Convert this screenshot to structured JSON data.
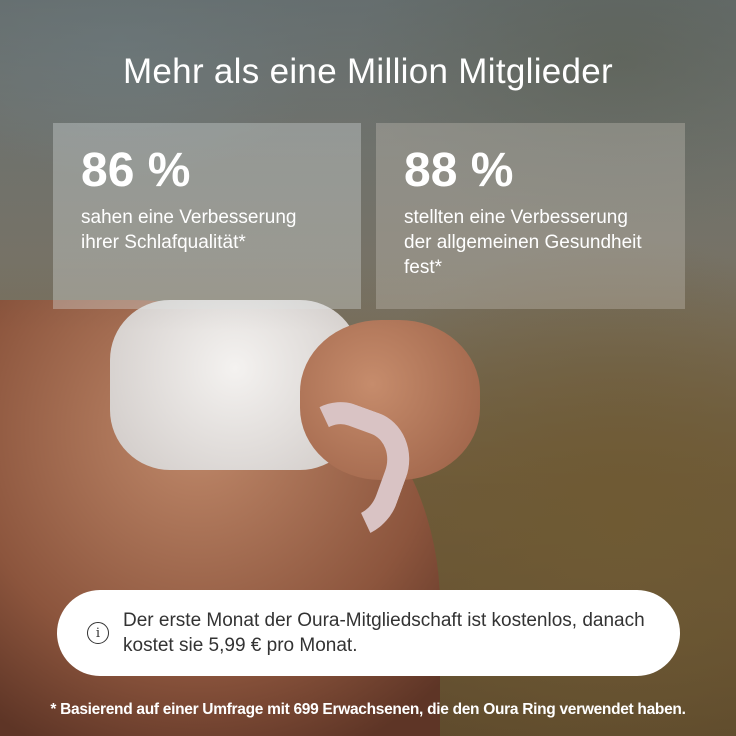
{
  "headline": "Mehr als eine Million Mitglieder",
  "stats": [
    {
      "value": "86 %",
      "description": "sahen eine Verbesserung ihrer Schlafqualität*"
    },
    {
      "value": "88 %",
      "description": "stellten eine Verbesserung der allgemeinen Gesundheit fest*"
    }
  ],
  "notice": {
    "icon": "info-icon",
    "text": "Der erste Monat der Oura-Mitgliedschaft ist kostenlos, danach kostet sie 5,99 € pro Monat."
  },
  "footnote": "* Basierend auf einer Umfrage mit 699 Erwachsenen, die den Oura Ring verwendet haben."
}
